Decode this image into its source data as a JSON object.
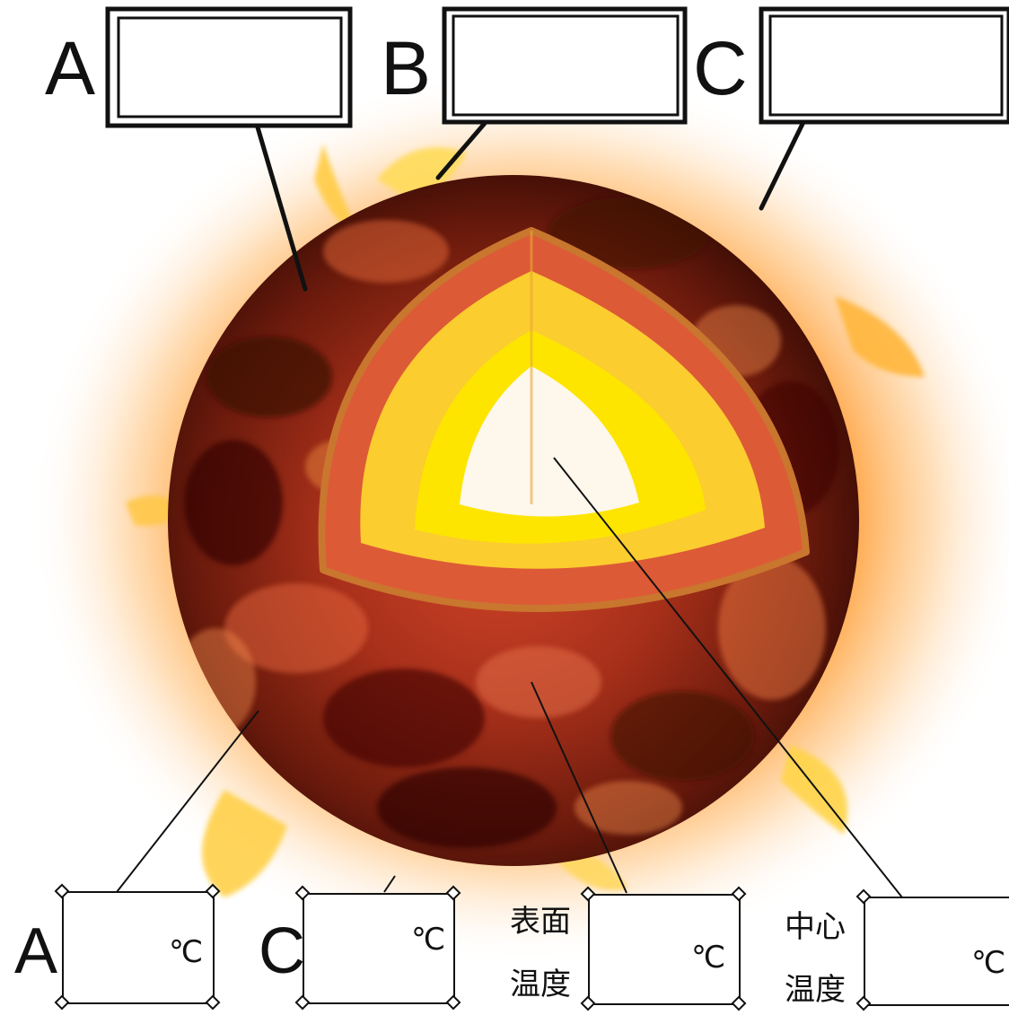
{
  "top_labels": {
    "a": "A",
    "b": "B",
    "c": "C"
  },
  "bottom_labels": {
    "a": "A",
    "c": "C",
    "surface_line1": "表面",
    "surface_line2": "温度",
    "center_line1": "中心",
    "center_line2": "温度"
  },
  "units": {
    "box1": "℃",
    "box2": "℃",
    "box3": "℃",
    "box4": "℃"
  },
  "colors": {
    "glow": "#ff9a2e",
    "surface_dark": "#5a1408",
    "surface_mid": "#b8321a",
    "outer_shell": "#dd5a36",
    "shell_rim": "#c9762e",
    "layer_yellow": "#fbcd2f",
    "layer_bright": "#fde500",
    "core": "#fdf7ec"
  }
}
